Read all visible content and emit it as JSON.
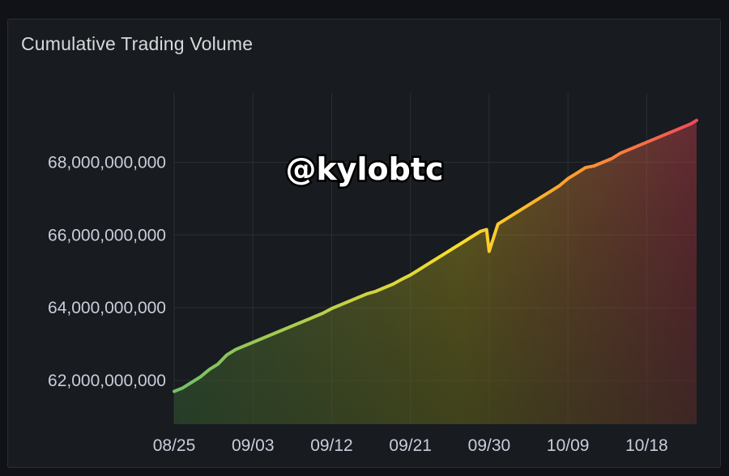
{
  "panel": {
    "title": "Cumulative Trading Volume"
  },
  "watermark": "@kylobtc",
  "chart_data": {
    "type": "area",
    "title": "Cumulative Trading Volume",
    "xlabel": "",
    "ylabel": "",
    "x_tick_labels": [
      "08/25",
      "09/03",
      "09/12",
      "09/21",
      "09/30",
      "10/09",
      "10/18"
    ],
    "x_tick_days": [
      0,
      9,
      18,
      27,
      36,
      45,
      54
    ],
    "y_tick_values": [
      62000000000,
      64000000000,
      66000000000,
      68000000000
    ],
    "y_tick_labels": [
      "62,000,000,000",
      "64,000,000,000",
      "66,000,000,000",
      "68,000,000,000"
    ],
    "xlim": [
      0,
      59.7
    ],
    "ylim": [
      60800000000,
      69900000000
    ],
    "grid": true,
    "legend": "none",
    "gradient": [
      "#73bf69",
      "#fade2a",
      "#f2495c"
    ],
    "series": [
      {
        "x": [
          0,
          1,
          2,
          3,
          4,
          5,
          6,
          7,
          8,
          9,
          10,
          11,
          12,
          13,
          14,
          15,
          16,
          17,
          18,
          19,
          20,
          21,
          22,
          23,
          24,
          25,
          26,
          27,
          28,
          29,
          30,
          31,
          32,
          33,
          34,
          35,
          35.7,
          36,
          37,
          38,
          39,
          40,
          41,
          42,
          43,
          44,
          45,
          46,
          47,
          48,
          49,
          50,
          51,
          52,
          53,
          54,
          55,
          56,
          57,
          58,
          59,
          59.7
        ],
        "values": [
          61700000000,
          61800000000,
          61950000000,
          62100000000,
          62300000000,
          62450000000,
          62700000000,
          62850000000,
          62950000000,
          63050000000,
          63150000000,
          63250000000,
          63350000000,
          63450000000,
          63550000000,
          63650000000,
          63750000000,
          63850000000,
          63980000000,
          64080000000,
          64180000000,
          64280000000,
          64380000000,
          64450000000,
          64550000000,
          64650000000,
          64780000000,
          64900000000,
          65050000000,
          65200000000,
          65350000000,
          65500000000,
          65650000000,
          65800000000,
          65950000000,
          66100000000,
          66150000000,
          65550000000,
          66300000000,
          66450000000,
          66600000000,
          66750000000,
          66900000000,
          67050000000,
          67200000000,
          67350000000,
          67550000000,
          67700000000,
          67850000000,
          67900000000,
          68000000000,
          68100000000,
          68250000000,
          68350000000,
          68450000000,
          68550000000,
          68650000000,
          68750000000,
          68850000000,
          68950000000,
          69050000000,
          69150000000
        ]
      }
    ]
  }
}
